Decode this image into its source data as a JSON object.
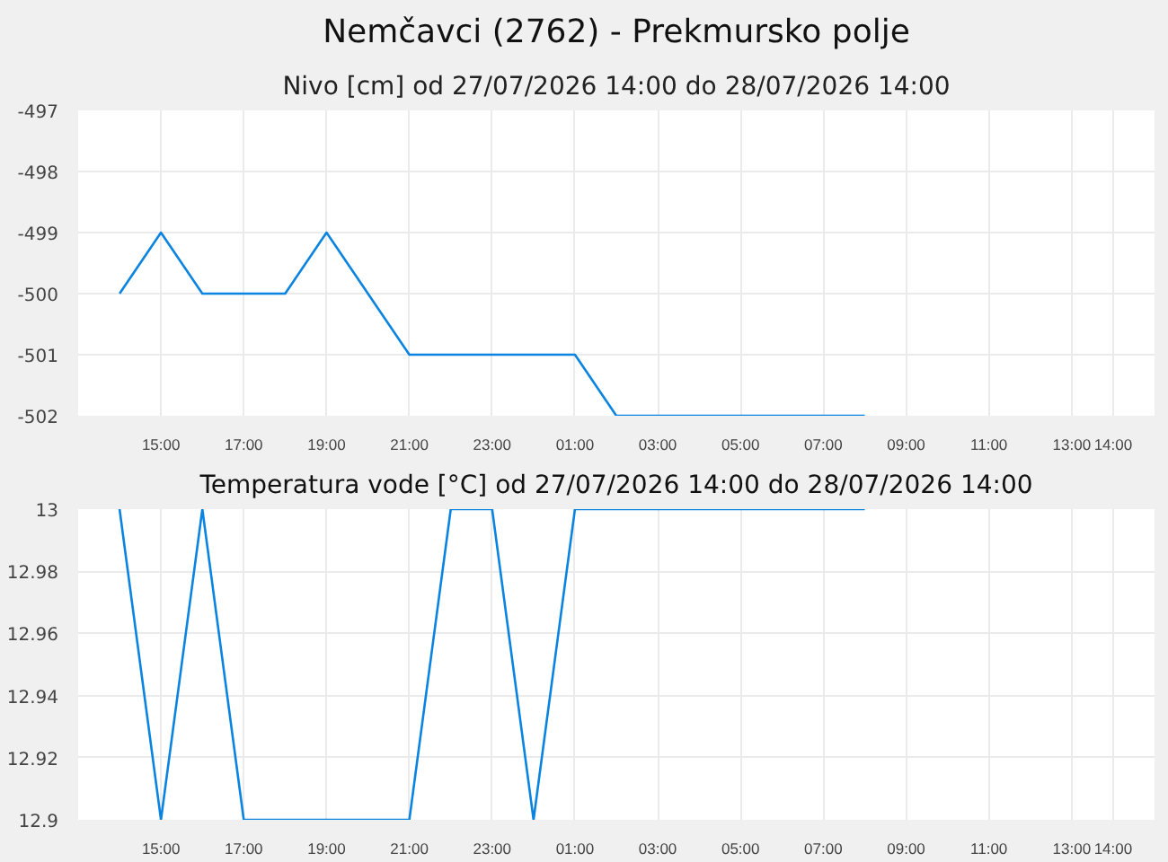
{
  "chart_data": [
    {
      "type": "line",
      "title": "Nemčavci (2762) - Prekmursko polje",
      "subtitle": "Nivo [cm] od 27/07/2026 14:00 do 28/07/2026 14:00",
      "x": [
        "2026-07-27T14:00",
        "2026-07-27T15:00",
        "2026-07-27T16:00",
        "2026-07-27T18:00",
        "2026-07-27T19:00",
        "2026-07-27T21:00",
        "2026-07-28T01:00",
        "2026-07-28T02:00",
        "2026-07-28T08:00"
      ],
      "series": [
        {
          "color": "#0a84e0",
          "values": [
            -500,
            -499,
            -500,
            -500,
            -499,
            -501,
            -501,
            -502,
            -502
          ]
        }
      ],
      "xlim": [
        "2026-07-27T13:00",
        "2026-07-28T15:00"
      ],
      "xticks": [
        {
          "value": "2026-07-27T15:00",
          "label": "15:00"
        },
        {
          "value": "2026-07-27T17:00",
          "label": "17:00"
        },
        {
          "value": "2026-07-27T19:00",
          "label": "19:00"
        },
        {
          "value": "2026-07-27T21:00",
          "label": "21:00"
        },
        {
          "value": "2026-07-27T23:00",
          "label": "23:00"
        },
        {
          "value": "2026-07-28T01:00",
          "label": "01:00"
        },
        {
          "value": "2026-07-28T03:00",
          "label": "03:00"
        },
        {
          "value": "2026-07-28T05:00",
          "label": "05:00"
        },
        {
          "value": "2026-07-28T07:00",
          "label": "07:00"
        },
        {
          "value": "2026-07-28T09:00",
          "label": "09:00"
        },
        {
          "value": "2026-07-28T11:00",
          "label": "11:00"
        },
        {
          "value": "2026-07-28T13:00",
          "label": "13:00"
        },
        {
          "value": "2026-07-28T14:00",
          "label": "14:00"
        }
      ],
      "ylim": [
        -502,
        -497
      ],
      "yticks": [
        -502,
        -501,
        -500,
        -499,
        -498,
        -497
      ],
      "grid": true,
      "line_style": "solid"
    },
    {
      "type": "line",
      "title": "Temperatura vode [°C] od 27/07/2026 14:00 do 28/07/2026 14:00",
      "x": [
        "2026-07-27T14:00",
        "2026-07-27T15:00",
        "2026-07-27T16:00",
        "2026-07-27T17:00",
        "2026-07-27T21:00",
        "2026-07-27T22:00",
        "2026-07-27T23:00",
        "2026-07-28T00:00",
        "2026-07-28T01:00",
        "2026-07-28T08:00"
      ],
      "series": [
        {
          "color": "#0a84e0",
          "values": [
            13,
            12.9,
            13,
            12.9,
            12.9,
            13,
            13,
            12.9,
            13,
            13
          ]
        }
      ],
      "xlim": [
        "2026-07-27T13:00",
        "2026-07-28T15:00"
      ],
      "xticks": [
        {
          "value": "2026-07-27T15:00",
          "label": "15:00"
        },
        {
          "value": "2026-07-27T17:00",
          "label": "17:00"
        },
        {
          "value": "2026-07-27T19:00",
          "label": "19:00"
        },
        {
          "value": "2026-07-27T21:00",
          "label": "21:00"
        },
        {
          "value": "2026-07-27T23:00",
          "label": "23:00"
        },
        {
          "value": "2026-07-28T01:00",
          "label": "01:00"
        },
        {
          "value": "2026-07-28T03:00",
          "label": "03:00"
        },
        {
          "value": "2026-07-28T05:00",
          "label": "05:00"
        },
        {
          "value": "2026-07-28T07:00",
          "label": "07:00"
        },
        {
          "value": "2026-07-28T09:00",
          "label": "09:00"
        },
        {
          "value": "2026-07-28T11:00",
          "label": "11:00"
        },
        {
          "value": "2026-07-28T13:00",
          "label": "13:00"
        },
        {
          "value": "2026-07-28T14:00",
          "label": "14:00"
        }
      ],
      "ylim": [
        12.9,
        13
      ],
      "yticks": [
        12.9,
        12.92,
        12.94,
        12.96,
        12.98,
        13
      ],
      "grid": true,
      "line_style": "solid"
    }
  ]
}
